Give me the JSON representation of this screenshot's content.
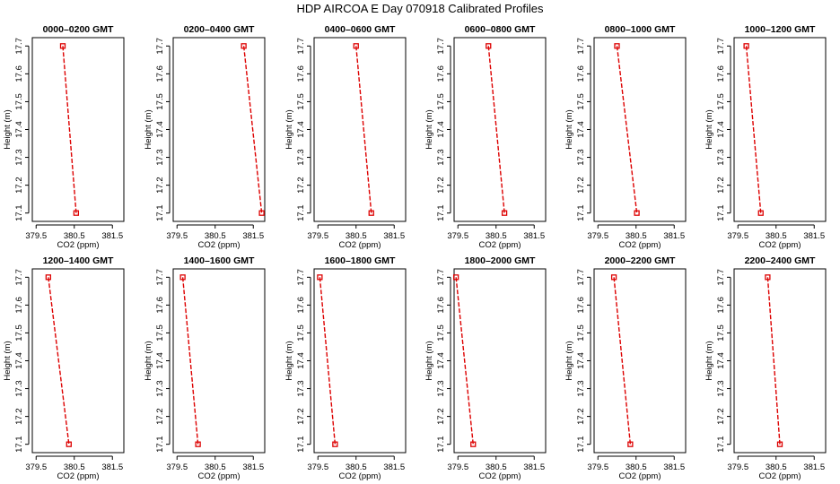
{
  "title": "HDP  AIRCOA E  Day 070918  Calibrated Profiles",
  "colors": {
    "series": "#dd0000",
    "axis": "#000000"
  },
  "chart_data": [
    {
      "type": "line",
      "title": "0000–0200 GMT",
      "xlabel": "CO2 (ppm)",
      "ylabel": "Height (m)",
      "xlim": [
        379.4,
        381.8
      ],
      "ylim": [
        17.07,
        17.73
      ],
      "xticks": [
        "379.5",
        "380.5",
        "381.5"
      ],
      "xtick_values": [
        379.5,
        380.5,
        381.5
      ],
      "yticks": [
        "17.1",
        "17.2",
        "17.3",
        "17.4",
        "17.5",
        "17.6",
        "17.7"
      ],
      "ytick_values": [
        17.1,
        17.2,
        17.3,
        17.4,
        17.5,
        17.6,
        17.7
      ],
      "series": [
        {
          "x": [
            380.2,
            380.55
          ],
          "y": [
            17.7,
            17.1
          ]
        }
      ]
    },
    {
      "type": "line",
      "title": "0200–0400 GMT",
      "xlabel": "CO2 (ppm)",
      "ylabel": "Height (m)",
      "xlim": [
        379.4,
        381.8
      ],
      "ylim": [
        17.07,
        17.73
      ],
      "xticks": [
        "379.5",
        "380.5",
        "381.5"
      ],
      "xtick_values": [
        379.5,
        380.5,
        381.5
      ],
      "yticks": [
        "17.1",
        "17.2",
        "17.3",
        "17.4",
        "17.5",
        "17.6",
        "17.7"
      ],
      "ytick_values": [
        17.1,
        17.2,
        17.3,
        17.4,
        17.5,
        17.6,
        17.7
      ],
      "series": [
        {
          "x": [
            381.25,
            381.72
          ],
          "y": [
            17.7,
            17.1
          ]
        }
      ]
    },
    {
      "type": "line",
      "title": "0400–0600 GMT",
      "xlabel": "CO2 (ppm)",
      "ylabel": "Height (m)",
      "xlim": [
        379.4,
        381.8
      ],
      "ylim": [
        17.07,
        17.73
      ],
      "xticks": [
        "379.5",
        "380.5",
        "381.5"
      ],
      "xtick_values": [
        379.5,
        380.5,
        381.5
      ],
      "yticks": [
        "17.1",
        "17.2",
        "17.3",
        "17.4",
        "17.5",
        "17.6",
        "17.7"
      ],
      "ytick_values": [
        17.1,
        17.2,
        17.3,
        17.4,
        17.5,
        17.6,
        17.7
      ],
      "series": [
        {
          "x": [
            380.5,
            380.9
          ],
          "y": [
            17.7,
            17.1
          ]
        }
      ]
    },
    {
      "type": "line",
      "title": "0600–0800 GMT",
      "xlabel": "CO2 (ppm)",
      "ylabel": "Height (m)",
      "xlim": [
        379.4,
        381.8
      ],
      "ylim": [
        17.07,
        17.73
      ],
      "xticks": [
        "379.5",
        "380.5",
        "381.5"
      ],
      "xtick_values": [
        379.5,
        380.5,
        381.5
      ],
      "yticks": [
        "17.1",
        "17.2",
        "17.3",
        "17.4",
        "17.5",
        "17.6",
        "17.7"
      ],
      "ytick_values": [
        17.1,
        17.2,
        17.3,
        17.4,
        17.5,
        17.6,
        17.7
      ],
      "series": [
        {
          "x": [
            380.3,
            380.72
          ],
          "y": [
            17.7,
            17.1
          ]
        }
      ]
    },
    {
      "type": "line",
      "title": "0800–1000 GMT",
      "xlabel": "CO2 (ppm)",
      "ylabel": "Height (m)",
      "xlim": [
        379.4,
        381.8
      ],
      "ylim": [
        17.07,
        17.73
      ],
      "xticks": [
        "379.5",
        "380.5",
        "381.5"
      ],
      "xtick_values": [
        379.5,
        380.5,
        381.5
      ],
      "yticks": [
        "17.1",
        "17.2",
        "17.3",
        "17.4",
        "17.5",
        "17.6",
        "17.7"
      ],
      "ytick_values": [
        17.1,
        17.2,
        17.3,
        17.4,
        17.5,
        17.6,
        17.7
      ],
      "series": [
        {
          "x": [
            380.0,
            380.52
          ],
          "y": [
            17.7,
            17.1
          ]
        }
      ]
    },
    {
      "type": "line",
      "title": "1000–1200 GMT",
      "xlabel": "CO2 (ppm)",
      "ylabel": "Height (m)",
      "xlim": [
        379.4,
        381.8
      ],
      "ylim": [
        17.07,
        17.73
      ],
      "xticks": [
        "379.5",
        "380.5",
        "381.5"
      ],
      "xtick_values": [
        379.5,
        380.5,
        381.5
      ],
      "yticks": [
        "17.1",
        "17.2",
        "17.3",
        "17.4",
        "17.5",
        "17.6",
        "17.7"
      ],
      "ytick_values": [
        17.1,
        17.2,
        17.3,
        17.4,
        17.5,
        17.6,
        17.7
      ],
      "series": [
        {
          "x": [
            379.72,
            380.1
          ],
          "y": [
            17.7,
            17.1
          ]
        }
      ]
    },
    {
      "type": "line",
      "title": "1200–1400 GMT",
      "xlabel": "CO2 (ppm)",
      "ylabel": "Height (m)",
      "xlim": [
        379.4,
        381.8
      ],
      "ylim": [
        17.07,
        17.73
      ],
      "xticks": [
        "379.5",
        "380.5",
        "381.5"
      ],
      "xtick_values": [
        379.5,
        380.5,
        381.5
      ],
      "yticks": [
        "17.1",
        "17.2",
        "17.3",
        "17.4",
        "17.5",
        "17.6",
        "17.7"
      ],
      "ytick_values": [
        17.1,
        17.2,
        17.3,
        17.4,
        17.5,
        17.6,
        17.7
      ],
      "series": [
        {
          "x": [
            379.82,
            380.36
          ],
          "y": [
            17.7,
            17.1
          ]
        }
      ]
    },
    {
      "type": "line",
      "title": "1400–1600 GMT",
      "xlabel": "CO2 (ppm)",
      "ylabel": "Height (m)",
      "xlim": [
        379.4,
        381.8
      ],
      "ylim": [
        17.07,
        17.73
      ],
      "xticks": [
        "379.5",
        "380.5",
        "381.5"
      ],
      "xtick_values": [
        379.5,
        380.5,
        381.5
      ],
      "yticks": [
        "17.1",
        "17.2",
        "17.3",
        "17.4",
        "17.5",
        "17.6",
        "17.7"
      ],
      "ytick_values": [
        17.1,
        17.2,
        17.3,
        17.4,
        17.5,
        17.6,
        17.7
      ],
      "series": [
        {
          "x": [
            379.65,
            380.05
          ],
          "y": [
            17.7,
            17.1
          ]
        }
      ]
    },
    {
      "type": "line",
      "title": "1600–1800 GMT",
      "xlabel": "CO2 (ppm)",
      "ylabel": "Height (m)",
      "xlim": [
        379.4,
        381.8
      ],
      "ylim": [
        17.07,
        17.73
      ],
      "xticks": [
        "379.5",
        "380.5",
        "381.5"
      ],
      "xtick_values": [
        379.5,
        380.5,
        381.5
      ],
      "yticks": [
        "17.1",
        "17.2",
        "17.3",
        "17.4",
        "17.5",
        "17.6",
        "17.7"
      ],
      "ytick_values": [
        17.1,
        17.2,
        17.3,
        17.4,
        17.5,
        17.6,
        17.7
      ],
      "series": [
        {
          "x": [
            379.55,
            379.95
          ],
          "y": [
            17.7,
            17.1
          ]
        }
      ]
    },
    {
      "type": "line",
      "title": "1800–2000 GMT",
      "xlabel": "CO2 (ppm)",
      "ylabel": "Height (m)",
      "xlim": [
        379.4,
        381.8
      ],
      "ylim": [
        17.07,
        17.73
      ],
      "xticks": [
        "379.5",
        "380.5",
        "381.5"
      ],
      "xtick_values": [
        379.5,
        380.5,
        381.5
      ],
      "yticks": [
        "17.1",
        "17.2",
        "17.3",
        "17.4",
        "17.5",
        "17.6",
        "17.7"
      ],
      "ytick_values": [
        17.1,
        17.2,
        17.3,
        17.4,
        17.5,
        17.6,
        17.7
      ],
      "series": [
        {
          "x": [
            379.45,
            379.9
          ],
          "y": [
            17.7,
            17.1
          ]
        }
      ]
    },
    {
      "type": "line",
      "title": "2000–2200 GMT",
      "xlabel": "CO2 (ppm)",
      "ylabel": "Height (m)",
      "xlim": [
        379.4,
        381.8
      ],
      "ylim": [
        17.07,
        17.73
      ],
      "xticks": [
        "379.5",
        "380.5",
        "381.5"
      ],
      "xtick_values": [
        379.5,
        380.5,
        381.5
      ],
      "yticks": [
        "17.1",
        "17.2",
        "17.3",
        "17.4",
        "17.5",
        "17.6",
        "17.7"
      ],
      "ytick_values": [
        17.1,
        17.2,
        17.3,
        17.4,
        17.5,
        17.6,
        17.7
      ],
      "series": [
        {
          "x": [
            379.92,
            380.35
          ],
          "y": [
            17.7,
            17.1
          ]
        }
      ]
    },
    {
      "type": "line",
      "title": "2200–2400 GMT",
      "xlabel": "CO2 (ppm)",
      "ylabel": "Height (m)",
      "xlim": [
        379.4,
        381.8
      ],
      "ylim": [
        17.07,
        17.73
      ],
      "xticks": [
        "379.5",
        "380.5",
        "381.5"
      ],
      "xtick_values": [
        379.5,
        380.5,
        381.5
      ],
      "yticks": [
        "17.1",
        "17.2",
        "17.3",
        "17.4",
        "17.5",
        "17.6",
        "17.7"
      ],
      "ytick_values": [
        17.1,
        17.2,
        17.3,
        17.4,
        17.5,
        17.6,
        17.7
      ],
      "series": [
        {
          "x": [
            380.28,
            380.6
          ],
          "y": [
            17.7,
            17.1
          ]
        }
      ]
    }
  ]
}
